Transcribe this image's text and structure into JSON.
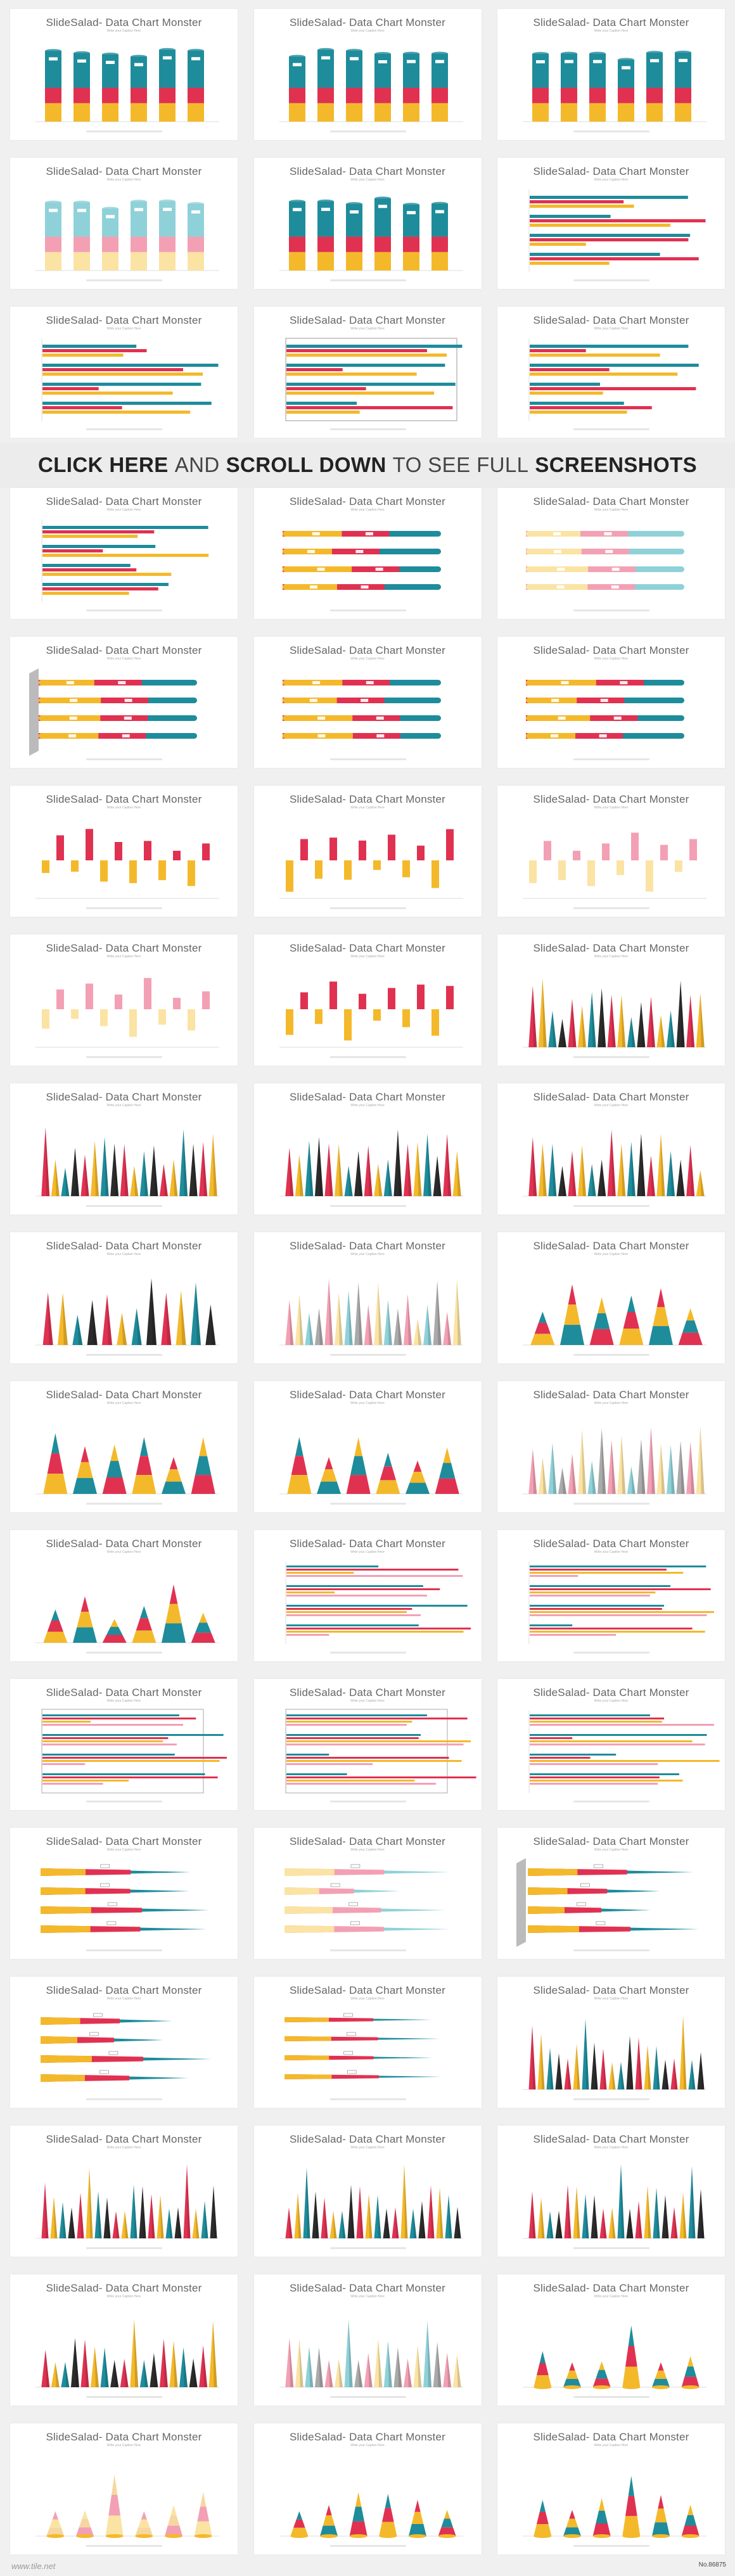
{
  "card": {
    "title": "SlideSalad- Data Chart Monster",
    "subtitle": "Write your Caption Here"
  },
  "banner": {
    "part1": "CLICK HERE",
    "part2": "AND",
    "part3": "SCROLL DOWN",
    "part4": "TO SEE FULL",
    "part5": "SCREENSHOTS"
  },
  "top_rows": [
    [
      "column-stacked",
      "column-stacked",
      "column-stacked"
    ],
    [
      "column-stacked-light",
      "column-stacked",
      "bar-horizontal"
    ],
    [
      "bar-horizontal",
      "bar-horizontal-frame",
      "bar-horizontal"
    ]
  ],
  "bottom_rows": [
    [
      "bar-horizontal",
      "bar-pill",
      "bar-pill-light"
    ],
    [
      "bar-pill-3d",
      "bar-pill",
      "bar-pill"
    ],
    [
      "waterfall",
      "waterfall",
      "waterfall-light"
    ],
    [
      "waterfall-light",
      "waterfall",
      "cones"
    ],
    [
      "cones",
      "cones",
      "cones"
    ],
    [
      "cones-sparse",
      "cones-light",
      "cones-big"
    ],
    [
      "cones-big",
      "cones-big",
      "cones-big-light"
    ],
    [
      "cones-big",
      "bar-thin",
      "bar-thin"
    ],
    [
      "bar-thin-frame",
      "bar-thin-frame",
      "bar-thin"
    ],
    [
      "bar-cone",
      "bar-cone-light",
      "bar-cone-3d"
    ],
    [
      "bar-cone",
      "bar-cone-small",
      "cones-tall"
    ],
    [
      "cones-tall",
      "cones-tall",
      "cones-tall"
    ],
    [
      "cones",
      "cones-light",
      "cones-round"
    ],
    [
      "cones-round",
      "cones-round",
      "cones-round-light"
    ]
  ],
  "watermark": "www.tile.net",
  "footer_no": "No.86875",
  "colors": {
    "teal": "#1e8c9b",
    "red": "#e03151",
    "yellow": "#f4b92a",
    "pink": "#f3a0b4",
    "lightteal": "#8fd1d8",
    "lightyellow": "#fbe3a4",
    "grey": "#cfcfcf"
  }
}
